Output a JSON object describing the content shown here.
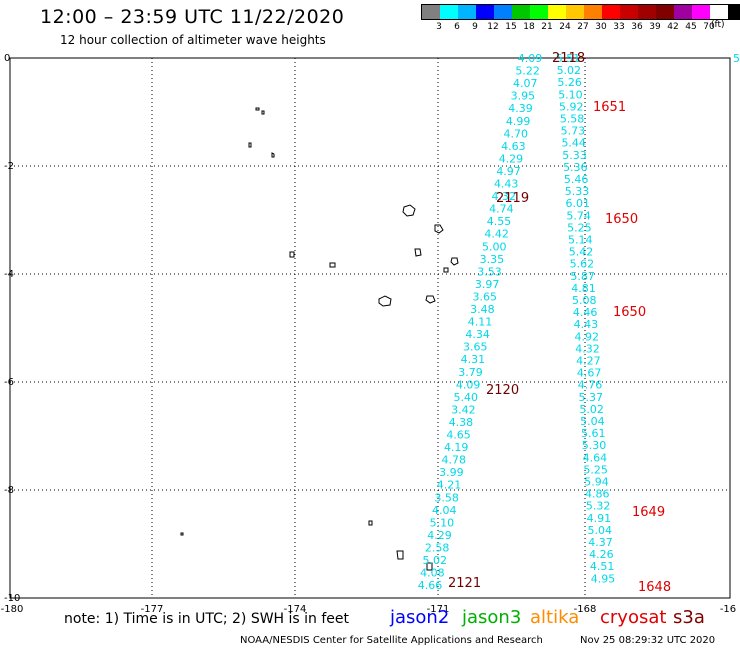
{
  "title": "12:00 – 23:59 UTC 11/22/2020",
  "subtitle": "12 hour collection of altimeter wave heights",
  "legend": {
    "colors": [
      "#808080",
      "#00ffff",
      "#00b4ff",
      "#0000ff",
      "#0080ff",
      "#00c800",
      "#00ff00",
      "#ffff00",
      "#ffc800",
      "#ff8000",
      "#ff0000",
      "#c80000",
      "#a00000",
      "#800000",
      "#a000a0",
      "#ff00ff",
      "#ffffff",
      "#000000"
    ],
    "labels": [
      "3",
      "6",
      "9",
      "12",
      "15",
      "18",
      "21",
      "24",
      "27",
      "30",
      "33",
      "36",
      "39",
      "42",
      "45",
      "70"
    ],
    "unit": "(ft)"
  },
  "axes": {
    "x_ticks": [
      "-180",
      "-177",
      "-174",
      "-171",
      "-168",
      "-16"
    ],
    "y_ticks": [
      "0",
      "-2",
      "-4",
      "-6",
      "-8",
      "-10"
    ]
  },
  "tracks": {
    "left": [
      "4.09",
      "5.22",
      "4.07",
      "3.95",
      "4.39",
      "4.99",
      "4.70",
      "4.63",
      "4.29",
      "4.97",
      "4.43",
      "4.32",
      "4.74",
      "4.55",
      "4.42",
      "5.00",
      "3.35",
      "3.53",
      "3.97",
      "3.65",
      "3.48",
      "4.11",
      "4.34",
      "3.65",
      "4.31",
      "3.79",
      "4.09",
      "5.40",
      "3.42",
      "4.38",
      "4.65",
      "4.19",
      "4.78",
      "3.99",
      "4.21",
      "3.58",
      "4.04",
      "5.10",
      "4.29",
      "2.58",
      "5.02",
      "4.08",
      "4.66"
    ],
    "right": [
      "5.51",
      "5.02",
      "5.26",
      "5.10",
      "5.92",
      "5.58",
      "5.73",
      "5.44",
      "5.33",
      "5.36",
      "5.46",
      "5.33",
      "6.01",
      "5.74",
      "5.25",
      "5.14",
      "5.42",
      "5.62",
      "5.87",
      "4.81",
      "5.08",
      "4.46",
      "4.43",
      "4.92",
      "4.32",
      "4.27",
      "4.67",
      "4.76",
      "5.37",
      "5.02",
      "5.04",
      "5.61",
      "5.30",
      "4.64",
      "5.25",
      "5.94",
      "4.86",
      "5.32",
      "4.91",
      "5.04",
      "4.37",
      "4.26",
      "4.51",
      "4.95"
    ],
    "edge": "5"
  },
  "time_labels": [
    {
      "text": "2118",
      "color": "#700000"
    },
    {
      "text": "1651",
      "color": "#e00000"
    },
    {
      "text": "2119",
      "color": "#700000"
    },
    {
      "text": "1650",
      "color": "#e00000"
    },
    {
      "text": "1650",
      "color": "#e00000"
    },
    {
      "text": "2120",
      "color": "#700000"
    },
    {
      "text": "1649",
      "color": "#e00000"
    },
    {
      "text": "2121",
      "color": "#700000"
    },
    {
      "text": "1648",
      "color": "#e00000"
    }
  ],
  "footer": {
    "note": "note:  1) Time is in UTC;  2) SWH is in feet",
    "satellites": [
      {
        "name": "jason2",
        "color": "#0000ff"
      },
      {
        "name": "jason3",
        "color": "#00b000"
      },
      {
        "name": "altika",
        "color": "#ff8c00"
      },
      {
        "name": "cryosat",
        "color": "#e00000"
      },
      {
        "name": "s3a",
        "color": "#800000"
      }
    ],
    "credit": "NOAA/NESDIS Center for Satellite Applications and Research",
    "timestamp": "Nov 25 08:29:32 UTC 2020"
  }
}
